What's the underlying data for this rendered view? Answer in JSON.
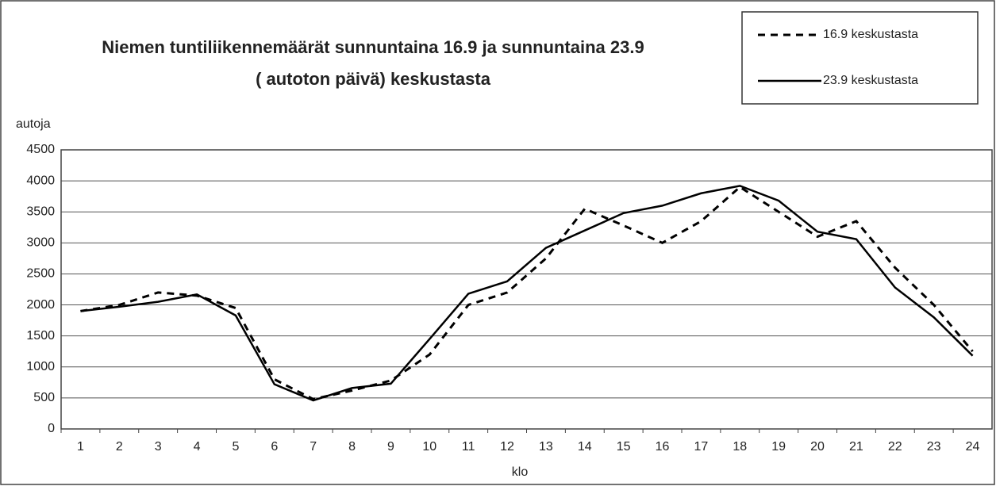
{
  "chart_data": {
    "type": "line",
    "title": [
      "Niemen  tuntiliikennemäärät sunnuntaina 16.9 ja sunnuntaina 23.9",
      "( autoton päivä) keskustasta"
    ],
    "ylabel": "autoja",
    "xlabel": "klo",
    "categories": [
      "1",
      "2",
      "3",
      "4",
      "5",
      "6",
      "7",
      "8",
      "9",
      "10",
      "11",
      "12",
      "13",
      "14",
      "15",
      "16",
      "17",
      "18",
      "19",
      "20",
      "21",
      "22",
      "23",
      "24"
    ],
    "series": [
      {
        "name": "16.9 keskustasta",
        "color": "#000000",
        "dash": true,
        "values": [
          1900,
          2000,
          2200,
          2150,
          1950,
          800,
          480,
          620,
          780,
          1200,
          2000,
          2200,
          2750,
          3550,
          3280,
          3000,
          3350,
          3900,
          3500,
          3100,
          3350,
          2600,
          2000,
          1250
        ]
      },
      {
        "name": "23.9 keskustasta",
        "color": "#000000",
        "dash": false,
        "values": [
          1900,
          1970,
          2050,
          2170,
          1830,
          720,
          460,
          660,
          730,
          1450,
          2180,
          2380,
          2920,
          3200,
          3480,
          3600,
          3800,
          3920,
          3680,
          3180,
          3060,
          2280,
          1800,
          1180
        ]
      }
    ],
    "ylim": [
      0,
      4500
    ],
    "yticks": [
      0,
      500,
      1000,
      1500,
      2000,
      2500,
      3000,
      3500,
      4000,
      4500
    ],
    "grid": true
  }
}
